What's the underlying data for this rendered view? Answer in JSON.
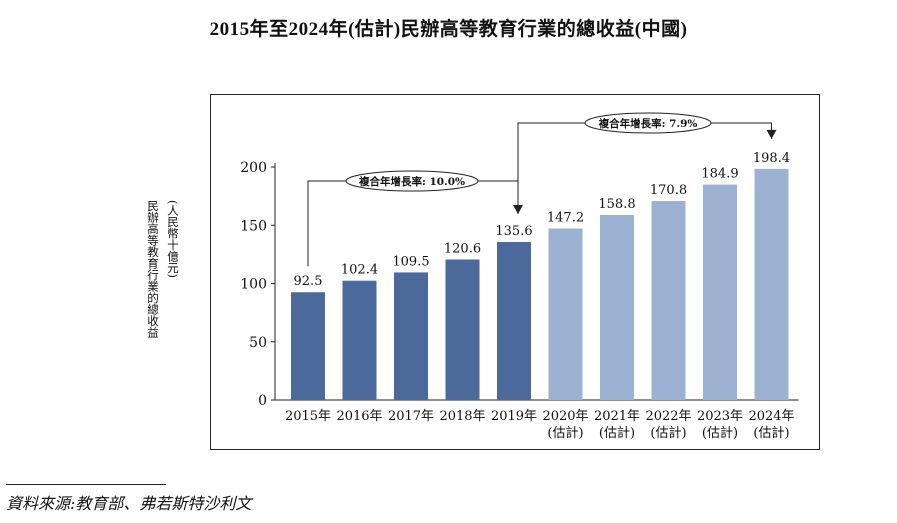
{
  "title": "2015年至2024年(估計)民辦高等教育行業的總收益(中國)",
  "source": "資料來源:教育部、弗若斯特沙利文",
  "colors": {
    "actual": "#4b6a9b",
    "estimate": "#9cb2d3",
    "axis": "#222222"
  },
  "chart_data": {
    "type": "bar",
    "ylabel": "民辦高等教育行業的總收益",
    "ylabel_unit": "(人民幣十億元)",
    "ylim": [
      0,
      200
    ],
    "yticks": [
      "0",
      "50",
      "100",
      "150",
      "200"
    ],
    "categories": [
      {
        "year": "2015年",
        "note": ""
      },
      {
        "year": "2016年",
        "note": ""
      },
      {
        "year": "2017年",
        "note": ""
      },
      {
        "year": "2018年",
        "note": ""
      },
      {
        "year": "2019年",
        "note": ""
      },
      {
        "year": "2020年",
        "note": "(估計)"
      },
      {
        "year": "2021年",
        "note": "(估計)"
      },
      {
        "year": "2022年",
        "note": "(估計)"
      },
      {
        "year": "2023年",
        "note": "(估計)"
      },
      {
        "year": "2024年",
        "note": "(估計)"
      }
    ],
    "values": [
      92.5,
      102.4,
      109.5,
      120.6,
      135.6,
      147.2,
      158.8,
      170.8,
      184.9,
      198.4
    ],
    "value_labels": [
      "92.5",
      "102.4",
      "109.5",
      "120.6",
      "135.6",
      "147.2",
      "158.8",
      "170.8",
      "184.9",
      "198.4"
    ],
    "estimated": [
      false,
      false,
      false,
      false,
      false,
      true,
      true,
      true,
      true,
      true
    ],
    "cagr_annotations": [
      {
        "label": "複合年增長率: 10.0%",
        "from_index": 0,
        "to_index": 4
      },
      {
        "label": "複合年增長率: 7.9%",
        "from_index": 4,
        "to_index": 9
      }
    ]
  }
}
